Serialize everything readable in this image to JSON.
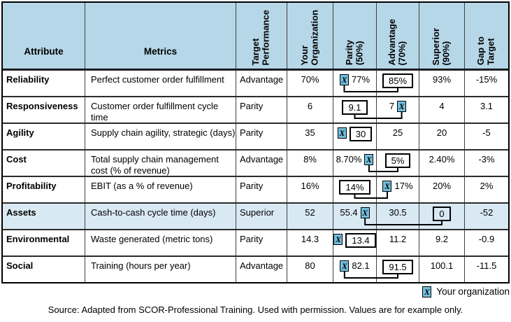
{
  "colors": {
    "header_bg": "#b6d7e7",
    "highlight_row_bg": "#d9e9f3",
    "marker_bg": "#72bedd"
  },
  "header": {
    "attribute": "Attribute",
    "metrics": "Metrics",
    "rotated": [
      "Target\nPerformance",
      "Your\nOrganization",
      "Parity\n(50%)",
      "Advantage\n(70%)",
      "Superior\n(90%)",
      "Gap to\nTarget"
    ]
  },
  "rows": [
    {
      "attribute": "Reliability",
      "metric": "Perfect customer order fulfillment",
      "target": "Advantage",
      "your_org": "70%",
      "parity": {
        "value": "77%",
        "marker": "left"
      },
      "advantage": {
        "value": "85%",
        "box": true
      },
      "superior": {
        "value": "93%"
      },
      "gap": "-15%",
      "highlight": false
    },
    {
      "attribute": "Responsiveness",
      "metric": "Customer order fulfillment cycle time",
      "target": "Parity",
      "your_org": "6",
      "parity": {
        "value": "9.1",
        "box": true
      },
      "advantage": {
        "value": "7",
        "marker": "right"
      },
      "superior": {
        "value": "4"
      },
      "gap": "3.1",
      "highlight": false
    },
    {
      "attribute": "Agility",
      "metric": "Supply chain agility, strategic (days)",
      "target": "Parity",
      "your_org": "35",
      "parity": {
        "value": "30",
        "marker": "left",
        "box": true
      },
      "advantage": {
        "value": "25"
      },
      "superior": {
        "value": "20"
      },
      "gap": "-5",
      "highlight": false
    },
    {
      "attribute": "Cost",
      "metric": "Total supply chain management cost (% of revenue)",
      "target": "Advantage",
      "your_org": "8%",
      "parity": {
        "value": "8.70%",
        "marker": "right"
      },
      "advantage": {
        "value": "5%",
        "box": true
      },
      "superior": {
        "value": "2.40%"
      },
      "gap": "-3%",
      "highlight": false
    },
    {
      "attribute": "Profitability",
      "metric": "EBIT (as a % of revenue)",
      "target": "Parity",
      "your_org": "16%",
      "parity": {
        "value": "14%",
        "box": true
      },
      "advantage": {
        "value": "17%",
        "marker": "left"
      },
      "superior": {
        "value": "20%"
      },
      "gap": "2%",
      "highlight": false
    },
    {
      "attribute": "Assets",
      "metric": "Cash-to-cash cycle time (days)",
      "target": "Superior",
      "your_org": "52",
      "parity": {
        "value": "55.4",
        "marker": "right"
      },
      "advantage": {
        "value": "30.5"
      },
      "superior": {
        "value": "0",
        "box": true
      },
      "gap": "-52",
      "highlight": true
    },
    {
      "attribute": "Environmental",
      "metric": "Waste generated (metric tons)",
      "target": "Parity",
      "your_org": "14.3",
      "parity": {
        "value": "13.4",
        "marker": "left",
        "box": true
      },
      "advantage": {
        "value": "11.2"
      },
      "superior": {
        "value": "9.2"
      },
      "gap": "-0.9",
      "highlight": false
    },
    {
      "attribute": "Social",
      "metric": "Training (hours per year)",
      "target": "Advantage",
      "your_org": "80",
      "parity": {
        "value": "82.1",
        "marker": "left"
      },
      "advantage": {
        "value": "91.5",
        "box": true
      },
      "superior": {
        "value": "100.1"
      },
      "gap": "-11.5",
      "highlight": false
    }
  ],
  "legend": {
    "marker": "X",
    "label": "Your organization"
  },
  "source": "Source: Adapted from SCOR-Professional Training. Used with permission. Values are for example only."
}
